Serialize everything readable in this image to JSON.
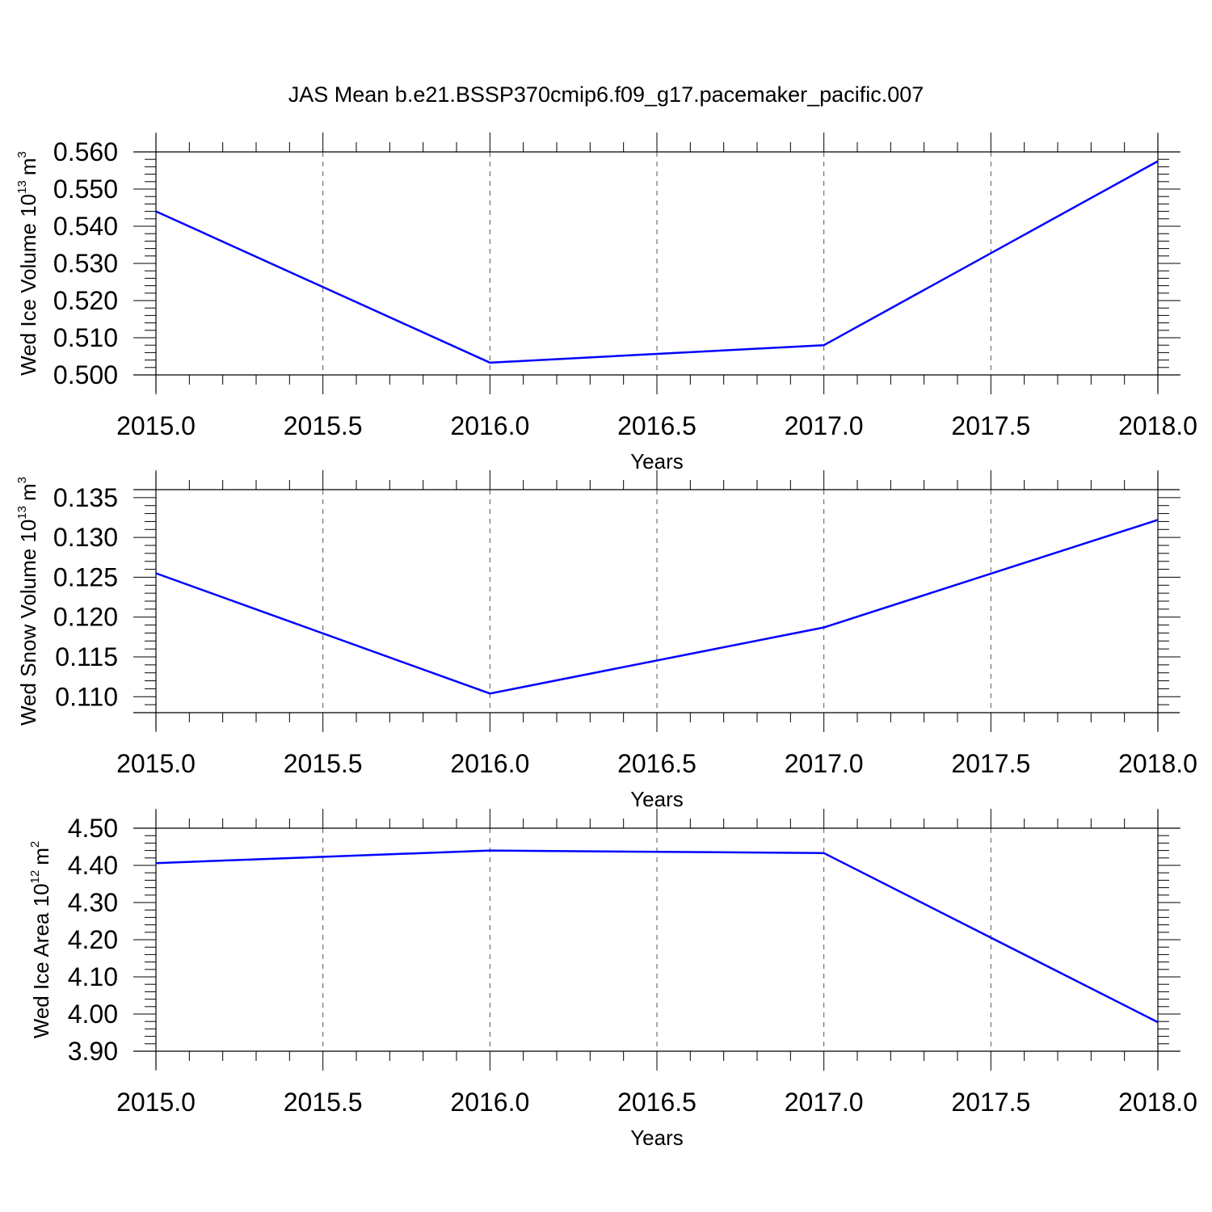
{
  "title": "JAS Mean b.e21.BSSP370cmip6.f09_g17.pacemaker_pacific.007",
  "colors": {
    "line": "#0000ff",
    "axis": "#000000",
    "grid": "#555555"
  },
  "chart_data": [
    {
      "type": "line",
      "xlabel": "Years",
      "ylabel": {
        "text": "Wed Ice Volume 10",
        "exp": "13",
        "unit": "m",
        "unit_exp": "3"
      },
      "xlim": [
        2015.0,
        2018.0
      ],
      "ylim": [
        0.5,
        0.56
      ],
      "xticks": [
        "2015.0",
        "2015.5",
        "2016.0",
        "2016.5",
        "2017.0",
        "2017.5",
        "2018.0"
      ],
      "yticks": [
        "0.500",
        "0.510",
        "0.520",
        "0.530",
        "0.540",
        "0.550",
        "0.560"
      ],
      "grid": "vertical dashed",
      "series": [
        {
          "x": [
            2015,
            2016,
            2017,
            2018
          ],
          "y": [
            0.544,
            0.5033,
            0.508,
            0.5575
          ]
        }
      ]
    },
    {
      "type": "line",
      "xlabel": "Years",
      "ylabel": {
        "text": "Wed Snow Volume 10",
        "exp": "13",
        "unit": "m",
        "unit_exp": "3"
      },
      "xlim": [
        2015.0,
        2018.0
      ],
      "ylim": [
        0.108,
        0.136
      ],
      "xticks": [
        "2015.0",
        "2015.5",
        "2016.0",
        "2016.5",
        "2017.0",
        "2017.5",
        "2018.0"
      ],
      "yticks": [
        "0.110",
        "0.115",
        "0.120",
        "0.125",
        "0.130",
        "0.135"
      ],
      "grid": "vertical dashed",
      "series": [
        {
          "x": [
            2015,
            2016,
            2017,
            2018
          ],
          "y": [
            0.1255,
            0.1104,
            0.1187,
            0.1322
          ]
        }
      ]
    },
    {
      "type": "line",
      "xlabel": "Years",
      "ylabel": {
        "text": "Wed Ice Area 10",
        "exp": "12",
        "unit": "m",
        "unit_exp": "2"
      },
      "xlim": [
        2015.0,
        2018.0
      ],
      "ylim": [
        3.9,
        4.5
      ],
      "xticks": [
        "2015.0",
        "2015.5",
        "2016.0",
        "2016.5",
        "2017.0",
        "2017.5",
        "2018.0"
      ],
      "yticks": [
        "3.90",
        "4.00",
        "4.10",
        "4.20",
        "4.30",
        "4.40",
        "4.50"
      ],
      "grid": "vertical dashed",
      "series": [
        {
          "x": [
            2015,
            2016,
            2017,
            2018
          ],
          "y": [
            4.406,
            4.44,
            4.433,
            3.978
          ]
        }
      ]
    }
  ]
}
